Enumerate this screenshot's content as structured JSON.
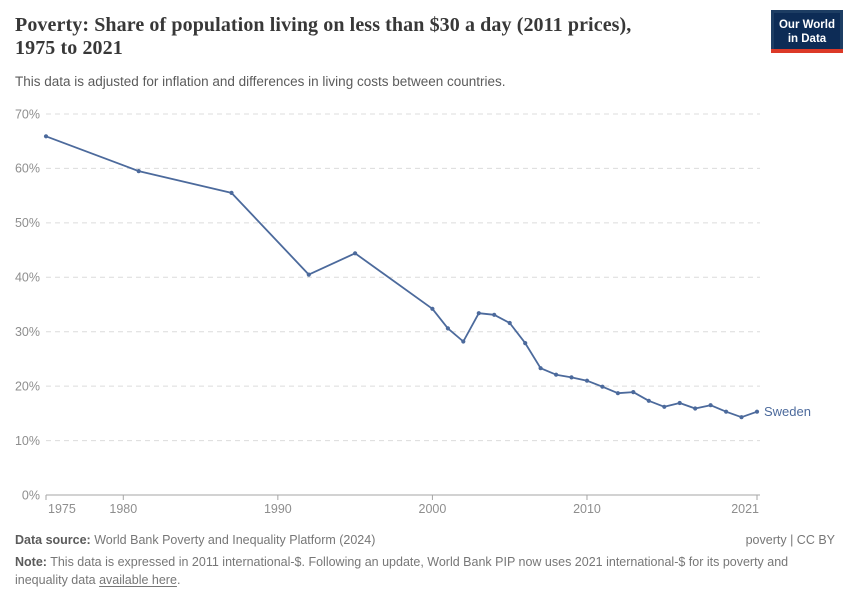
{
  "header": {
    "title": "Poverty: Share of population living on less than $30 a day (2011 prices), 1975 to 2021",
    "subtitle": "This data is adjusted for inflation and differences in living costs between countries.",
    "logo": {
      "line1": "Our World",
      "line2": "in Data"
    }
  },
  "chart_data": {
    "type": "line",
    "title": "Poverty: Share of population living on less than $30 a day (2011 prices), 1975 to 2021",
    "xlabel": "",
    "ylabel": "",
    "xlim": [
      1975,
      2021
    ],
    "ylim": [
      0,
      70
    ],
    "grid": "horizontal-dashed",
    "legend_position": "end-of-line-label",
    "x_ticks": [
      1975,
      1980,
      1990,
      2000,
      2010,
      2021
    ],
    "y_ticks": [
      0,
      10,
      20,
      30,
      40,
      50,
      60,
      70
    ],
    "y_tick_suffix": "%",
    "series": [
      {
        "name": "Sweden",
        "color": "#4C6A9C",
        "x": [
          1975,
          1981,
          1987,
          1992,
          1995,
          2000,
          2001,
          2002,
          2003,
          2004,
          2005,
          2006,
          2007,
          2008,
          2009,
          2010,
          2011,
          2012,
          2013,
          2014,
          2015,
          2016,
          2017,
          2018,
          2019,
          2020,
          2021
        ],
        "values": [
          65.9,
          59.5,
          55.5,
          40.5,
          44.4,
          34.2,
          30.6,
          28.2,
          33.4,
          33.1,
          31.6,
          27.9,
          23.3,
          22.1,
          21.6,
          21.0,
          19.9,
          18.7,
          18.9,
          17.3,
          16.2,
          16.9,
          15.9,
          16.5,
          15.3,
          14.3,
          15.3
        ]
      }
    ]
  },
  "colors": {
    "line": "#4C6A9C",
    "grid": "#dcdcdc",
    "axis": "#a5a5a5",
    "tick_label": "#8e8e8e",
    "logo_bg": "#0d2c56",
    "logo_border": "#1d3d63",
    "logo_red": "#dc3927"
  },
  "footer": {
    "datasource_label": "Data source:",
    "datasource_value": "World Bank Poverty and Inequality Platform (2024)",
    "license": "poverty | CC BY",
    "note_label": "Note:",
    "note_before": " This data is expressed in 2011 international-$. Following an update, World Bank PIP now uses 2021 international-$ for its poverty and inequality data ",
    "note_link": "available here",
    "note_after": "."
  }
}
